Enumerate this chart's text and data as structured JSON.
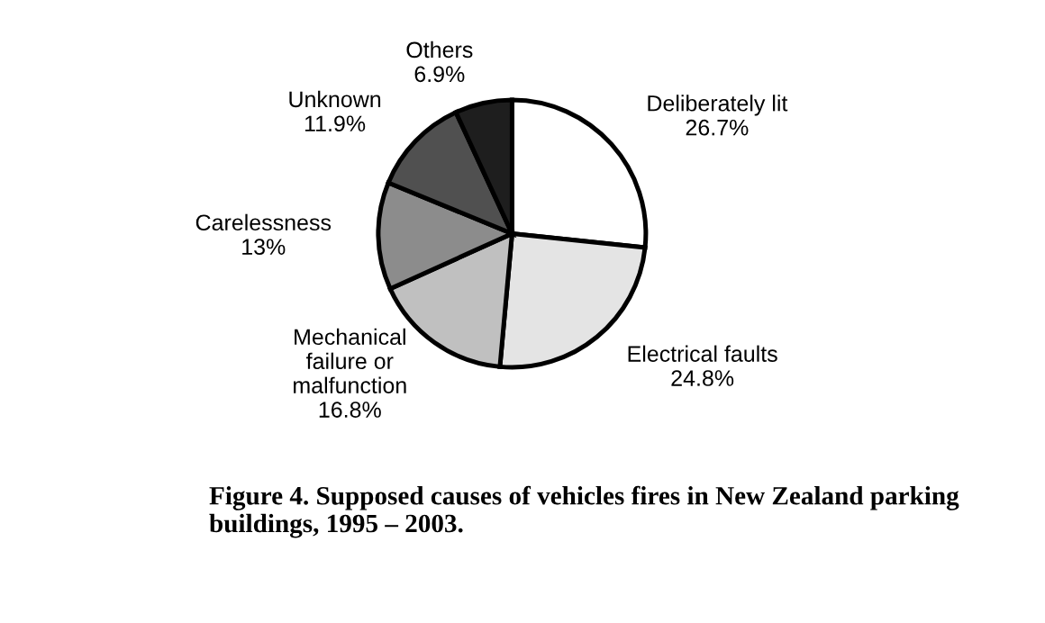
{
  "chart_data": {
    "type": "pie",
    "title": "Figure 4. Supposed causes of vehicles fires in New Zealand parking buildings, 1995 – 2003.",
    "categories": [
      "Deliberately lit",
      "Electrical faults",
      "Mechanical\nfailure or\nmalfunction",
      "Carelessness",
      "Unknown",
      "Others"
    ],
    "values": [
      26.7,
      24.8,
      16.8,
      13,
      11.9,
      6.9
    ],
    "value_labels": [
      "26.7%",
      "24.8%",
      "16.8%",
      "13%",
      "11.9%",
      "6.9%"
    ],
    "colors": [
      "#ffffff",
      "#e4e4e4",
      "#c0c0c0",
      "#8c8c8c",
      "#505050",
      "#1e1e1e"
    ],
    "legend": false
  }
}
